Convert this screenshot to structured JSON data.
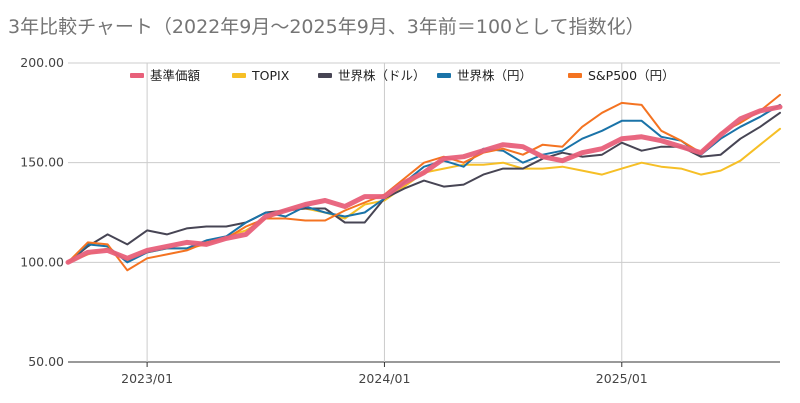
{
  "chart_data": {
    "type": "line",
    "title": "3年比較チャート（2022年9月〜2025年9月、3年前＝100として指数化）",
    "xlabel": "",
    "ylabel": "",
    "ylim": [
      50,
      200
    ],
    "yticks": [
      50,
      100,
      150,
      200
    ],
    "ytick_labels": [
      "50.00",
      "100.00",
      "150.00",
      "200.00"
    ],
    "xlim": [
      "2022-09",
      "2025-09"
    ],
    "xticks": [
      "2023-01",
      "2024-01",
      "2025-01"
    ],
    "xtick_labels": [
      "2023/01",
      "2024/01",
      "2025/01"
    ],
    "grid": true,
    "legend": "top",
    "x": [
      "2022-09",
      "2022-10",
      "2022-11",
      "2022-12",
      "2023-01",
      "2023-02",
      "2023-03",
      "2023-04",
      "2023-05",
      "2023-06",
      "2023-07",
      "2023-08",
      "2023-09",
      "2023-10",
      "2023-11",
      "2023-12",
      "2024-01",
      "2024-02",
      "2024-03",
      "2024-04",
      "2024-05",
      "2024-06",
      "2024-07",
      "2024-08",
      "2024-09",
      "2024-10",
      "2024-11",
      "2024-12",
      "2025-01",
      "2025-02",
      "2025-03",
      "2025-04",
      "2025-05",
      "2025-06",
      "2025-07",
      "2025-08",
      "2025-09"
    ],
    "series": [
      {
        "name": "基準価額",
        "color": "#e8607a",
        "values": [
          100,
          105,
          106,
          102,
          106,
          108,
          110,
          109,
          112,
          114,
          123,
          126,
          129,
          131,
          128,
          133,
          133,
          140,
          145,
          152,
          153,
          156,
          159,
          158,
          153,
          151,
          155,
          157,
          162,
          163,
          161,
          158,
          155,
          164,
          172,
          176,
          178
        ]
      },
      {
        "name": "TOPIX",
        "color": "#f6bf26",
        "values": [
          100,
          104,
          107,
          101,
          105,
          107,
          107,
          109,
          113,
          116,
          122,
          126,
          127,
          125,
          122,
          129,
          131,
          138,
          145,
          147,
          149,
          149,
          150,
          147,
          147,
          148,
          146,
          144,
          147,
          150,
          148,
          147,
          144,
          146,
          151,
          159,
          167
        ]
      },
      {
        "name": "世界株（ドル）",
        "color": "#474554",
        "values": [
          100,
          108,
          114,
          109,
          116,
          114,
          117,
          118,
          118,
          120,
          125,
          126,
          127,
          127,
          120,
          120,
          132,
          137,
          141,
          138,
          139,
          144,
          147,
          147,
          152,
          155,
          153,
          154,
          160,
          156,
          158,
          158,
          153,
          154,
          162,
          168,
          175
        ]
      },
      {
        "name": "世界株（円）",
        "color": "#1a73a8",
        "values": [
          100,
          109,
          108,
          100,
          105,
          107,
          107,
          111,
          113,
          120,
          125,
          123,
          128,
          125,
          123,
          125,
          132,
          140,
          148,
          151,
          148,
          157,
          156,
          150,
          154,
          156,
          162,
          166,
          171,
          171,
          163,
          161,
          154,
          162,
          168,
          173,
          179
        ]
      },
      {
        "name": "S&P500（円）",
        "color": "#f47321",
        "values": [
          100,
          110,
          109,
          96,
          102,
          104,
          106,
          110,
          112,
          118,
          122,
          122,
          121,
          121,
          126,
          130,
          134,
          142,
          150,
          153,
          150,
          155,
          157,
          154,
          159,
          158,
          168,
          175,
          180,
          179,
          166,
          161,
          155,
          165,
          170,
          176,
          184
        ]
      }
    ]
  }
}
